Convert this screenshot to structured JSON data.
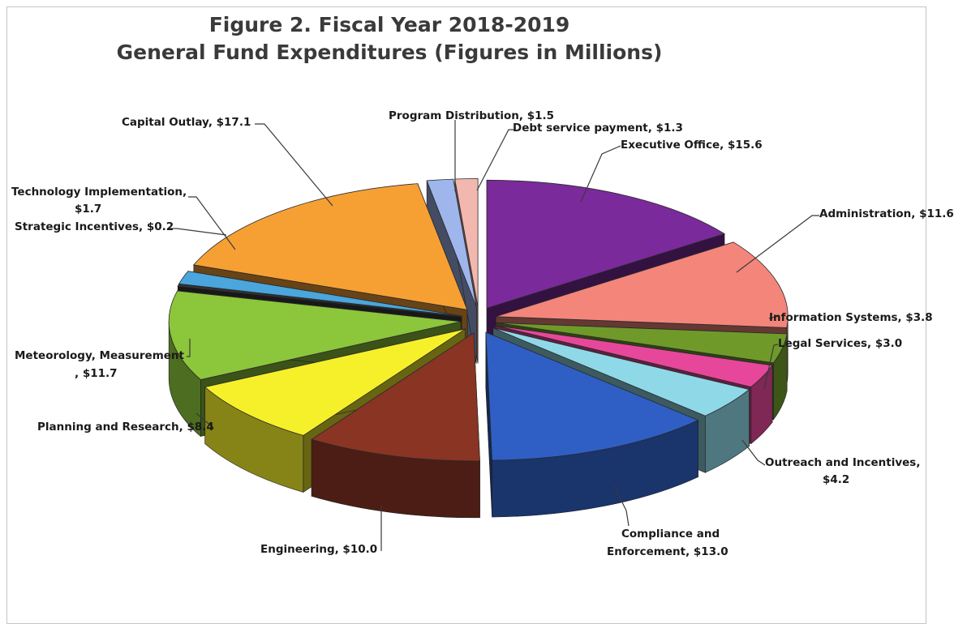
{
  "chart_data": {
    "type": "pie",
    "title": "Figure 2. Fiscal Year 2018-2019",
    "subtitle": "General Fund Expenditures (Figures in Millions)",
    "slices": [
      {
        "label": "Executive Office, $15.6",
        "value": 15.6,
        "color": "#7a2a9a"
      },
      {
        "label": "Administration,  $11.6",
        "value": 11.6,
        "color": "#f4857a"
      },
      {
        "label": "Information Systems, $3.8",
        "value": 3.8,
        "color": "#6f9a2a"
      },
      {
        "label": "Legal Services, $3.0",
        "value": 3.0,
        "color": "#e7479a"
      },
      {
        "label": "Outreach and Incentives, $4.2",
        "value": 4.2,
        "color": "#8fd8e8"
      },
      {
        "label": "Compliance and Enforcement, $13.0",
        "value": 13.0,
        "color": "#2f5fc4"
      },
      {
        "label": "Engineering, $10.0",
        "value": 10.0,
        "color": "#8a3424"
      },
      {
        "label": "Planning and Research, $8.4",
        "value": 8.4,
        "color": "#f6f02a"
      },
      {
        "label": "Meteorology, Measurement , $11.7",
        "value": 11.7,
        "color": "#8cc63a"
      },
      {
        "label": "Strategic Incentives, $0.2",
        "value": 0.2,
        "color": "#3a3a3a"
      },
      {
        "label": "Technology Implementation, $1.7",
        "value": 1.7,
        "color": "#4aa6dc"
      },
      {
        "label": "Capital Outlay, $17.1",
        "value": 17.1,
        "color": "#f6a034"
      },
      {
        "label": "Program Distribution, $1.5",
        "value": 1.5,
        "color": "#9fb6ec"
      },
      {
        "label": "Debt service payment, $1.3",
        "value": 1.3,
        "color": "#f2b8b0"
      }
    ]
  },
  "labels": {
    "executive": "Executive Office, $15.6",
    "administration": "Administration,  $11.6",
    "information_systems": "Information Systems, $3.8",
    "legal": "Legal Services, $3.0",
    "outreach_1": "Outreach and Incentives,",
    "outreach_2": "$4.2",
    "compliance_1": "Compliance and",
    "compliance_2": "Enforcement, $13.0",
    "engineering": "Engineering, $10.0",
    "planning": "Planning and Research, $8.4",
    "meteorology_1": "Meteorology, Measurement",
    "meteorology_2": ", $11.7",
    "strategic": "Strategic Incentives, $0.2",
    "technology_1": "Technology Implementation,",
    "technology_2": "$1.7",
    "capital": "Capital Outlay, $17.1",
    "program": "Program Distribution, $1.5",
    "debt": "Debt service payment, $1.3"
  }
}
